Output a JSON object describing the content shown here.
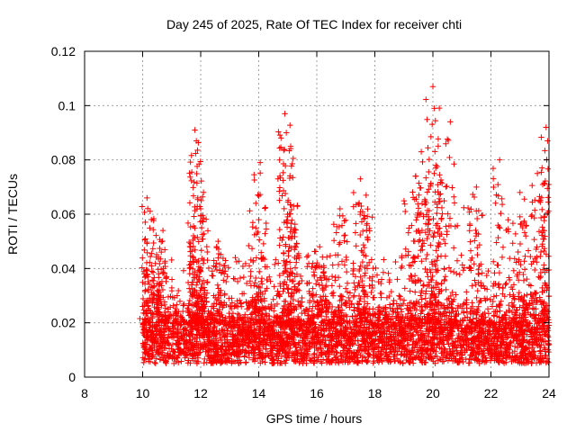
{
  "chart_data": {
    "type": "scatter",
    "title": "Day 245 of 2025, Rate Of TEC Index for receiver chti",
    "xlabel": "GPS time / hours",
    "ylabel": "ROTI / TECUs",
    "xlim": [
      8,
      24
    ],
    "ylim": [
      0,
      0.12
    ],
    "x_ticks": [
      8,
      10,
      12,
      14,
      16,
      18,
      20,
      22,
      24
    ],
    "x_tick_labels": [
      "8",
      "10",
      "12",
      "14",
      "16",
      "18",
      "20",
      "22",
      "24"
    ],
    "y_ticks": [
      0,
      0.02,
      0.04,
      0.06,
      0.08,
      0.1,
      0.12
    ],
    "y_tick_labels": [
      "0",
      "0.02",
      "0.04",
      "0.06",
      "0.08",
      "0.1",
      "0.12"
    ],
    "grid": true,
    "marker": "+",
    "marker_color": "#ff0000",
    "series": [
      {
        "name": "ROTI",
        "data_start_hour": 10.0,
        "data_end_hour": 24.0,
        "baseline_range": [
          0.005,
          0.02
        ],
        "notable_points": [
          {
            "x": 10.15,
            "y": 0.066
          },
          {
            "x": 10.3,
            "y": 0.058
          },
          {
            "x": 10.7,
            "y": 0.054
          },
          {
            "x": 11.8,
            "y": 0.091
          },
          {
            "x": 11.85,
            "y": 0.087
          },
          {
            "x": 11.9,
            "y": 0.066
          },
          {
            "x": 12.0,
            "y": 0.062
          },
          {
            "x": 12.6,
            "y": 0.05
          },
          {
            "x": 13.9,
            "y": 0.064
          },
          {
            "x": 14.05,
            "y": 0.079
          },
          {
            "x": 14.9,
            "y": 0.097
          },
          {
            "x": 14.95,
            "y": 0.09
          },
          {
            "x": 15.1,
            "y": 0.085
          },
          {
            "x": 15.2,
            "y": 0.063
          },
          {
            "x": 16.1,
            "y": 0.048
          },
          {
            "x": 16.8,
            "y": 0.062
          },
          {
            "x": 17.5,
            "y": 0.073
          },
          {
            "x": 17.7,
            "y": 0.067
          },
          {
            "x": 19.4,
            "y": 0.074
          },
          {
            "x": 19.6,
            "y": 0.083
          },
          {
            "x": 20.0,
            "y": 0.107
          },
          {
            "x": 20.05,
            "y": 0.099
          },
          {
            "x": 20.1,
            "y": 0.078
          },
          {
            "x": 20.6,
            "y": 0.094
          },
          {
            "x": 21.5,
            "y": 0.07
          },
          {
            "x": 22.3,
            "y": 0.08
          },
          {
            "x": 23.0,
            "y": 0.068
          },
          {
            "x": 23.6,
            "y": 0.075
          },
          {
            "x": 23.9,
            "y": 0.092
          },
          {
            "x": 23.95,
            "y": 0.087
          }
        ]
      }
    ]
  }
}
